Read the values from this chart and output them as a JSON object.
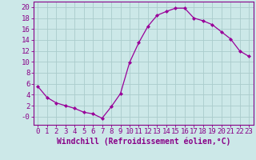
{
  "x": [
    0,
    1,
    2,
    3,
    4,
    5,
    6,
    7,
    8,
    9,
    10,
    11,
    12,
    13,
    14,
    15,
    16,
    17,
    18,
    19,
    20,
    21,
    22,
    23
  ],
  "y": [
    5.5,
    3.5,
    2.5,
    2.0,
    1.5,
    0.8,
    0.5,
    -0.3,
    1.8,
    4.2,
    9.9,
    13.5,
    16.5,
    18.5,
    19.2,
    19.8,
    19.8,
    18.0,
    17.5,
    16.8,
    15.5,
    14.2,
    12.0,
    11.0
  ],
  "line_color": "#990099",
  "marker": "D",
  "marker_size": 2,
  "bg_color": "#cce8e8",
  "grid_color": "#aacccc",
  "xlabel": "Windchill (Refroidissement éolien,°C)",
  "ylim": [
    -1.5,
    21
  ],
  "xlim": [
    -0.5,
    23.5
  ],
  "yticks": [
    0,
    2,
    4,
    6,
    8,
    10,
    12,
    14,
    16,
    18,
    20
  ],
  "ytick_labels": [
    "-0",
    "2",
    "4",
    "6",
    "8",
    "10",
    "12",
    "14",
    "16",
    "18",
    "20"
  ],
  "xticks": [
    0,
    1,
    2,
    3,
    4,
    5,
    6,
    7,
    8,
    9,
    10,
    11,
    12,
    13,
    14,
    15,
    16,
    17,
    18,
    19,
    20,
    21,
    22,
    23
  ],
  "axis_color": "#880088",
  "font_size": 6.5
}
